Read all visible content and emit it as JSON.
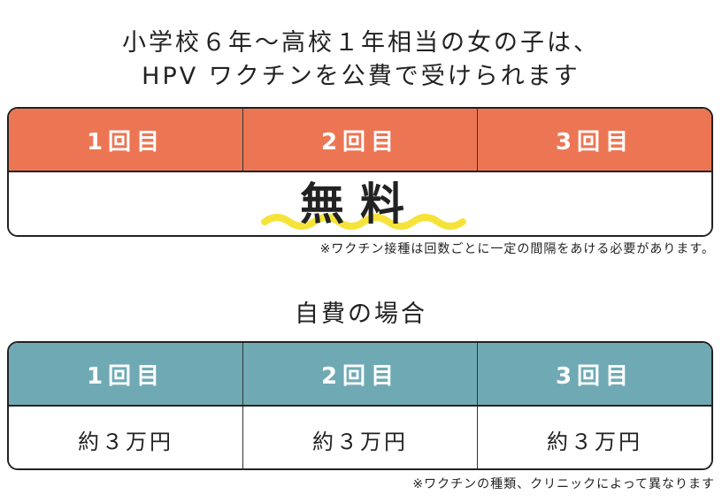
{
  "heading": {
    "line1": "小学校６年〜高校１年相当の女の子は、",
    "line2": "HPV ワクチンを公費で受けられます"
  },
  "free_table": {
    "headers": [
      "1回目",
      "2回目",
      "3回目"
    ],
    "body": "無料",
    "note": "※ワクチン接種は回数ごとに一定の間隔をあける必要があります。"
  },
  "self_pay": {
    "title": "自費の場合",
    "headers": [
      "1回目",
      "2回目",
      "3回目"
    ],
    "cells": [
      "約３万円",
      "約３万円",
      "約３万円"
    ],
    "note": "※ワクチンの種類、クリニックによって異なります"
  },
  "colors": {
    "free_header": "#ec7654",
    "self_header": "#6faab4",
    "highlight_wave": "#f5e33a"
  }
}
